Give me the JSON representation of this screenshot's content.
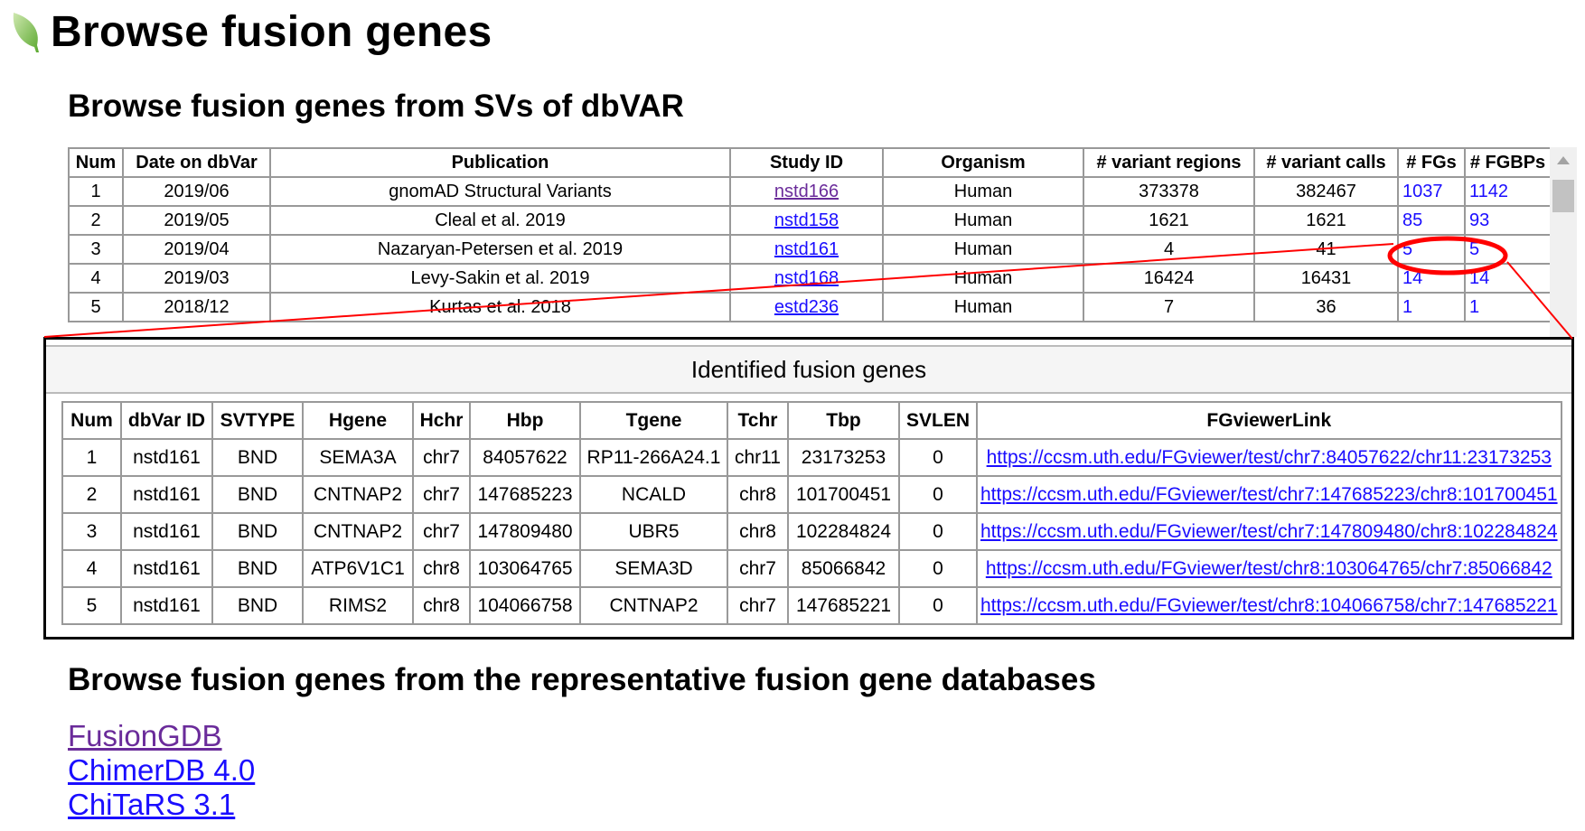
{
  "page": {
    "title": "Browse fusion genes",
    "icon": "leaf-icon",
    "accent_color": "#ff0000"
  },
  "dbvar_section": {
    "heading": "Browse fusion genes from SVs of dbVAR",
    "columns": [
      "Num",
      "Date on dbVar",
      "Publication",
      "Study ID",
      "Organism",
      "# variant regions",
      "# variant calls",
      "# FGs",
      "# FGBPs"
    ],
    "rows": [
      {
        "num": "1",
        "date": "2019/06",
        "publication": "gnomAD Structural Variants",
        "study_id": "nstd166",
        "organism": "Human",
        "variant_regions": "373378",
        "variant_calls": "382467",
        "fgs": "1037",
        "fgbps": "1142"
      },
      {
        "num": "2",
        "date": "2019/05",
        "publication": "Cleal et al. 2019",
        "study_id": "nstd158",
        "organism": "Human",
        "variant_regions": "1621",
        "variant_calls": "1621",
        "fgs": "85",
        "fgbps": "93"
      },
      {
        "num": "3",
        "date": "2019/04",
        "publication": "Nazaryan-Petersen et al. 2019",
        "study_id": "nstd161",
        "organism": "Human",
        "variant_regions": "4",
        "variant_calls": "41",
        "fgs": "5",
        "fgbps": "5"
      },
      {
        "num": "4",
        "date": "2019/03",
        "publication": "Levy-Sakin et al. 2019",
        "study_id": "nstd168",
        "organism": "Human",
        "variant_regions": "16424",
        "variant_calls": "16431",
        "fgs": "14",
        "fgbps": "14"
      },
      {
        "num": "5",
        "date": "2018/12",
        "publication": "Kurtas et al. 2018",
        "study_id": "estd236",
        "organism": "Human",
        "variant_regions": "7",
        "variant_calls": "36",
        "fgs": "1",
        "fgbps": "1"
      }
    ]
  },
  "identified_panel": {
    "caption": "Identified fusion genes",
    "columns": [
      "Num",
      "dbVar ID",
      "SVTYPE",
      "Hgene",
      "Hchr",
      "Hbp",
      "Tgene",
      "Tchr",
      "Tbp",
      "SVLEN",
      "FGviewerLink"
    ],
    "rows": [
      [
        "1",
        "nstd161",
        "BND",
        "SEMA3A",
        "chr7",
        "84057622",
        "RP11-266A24.1",
        "chr11",
        "23173253",
        "0",
        "https://ccsm.uth.edu/FGviewer/test/chr7:84057622/chr11:23173253"
      ],
      [
        "2",
        "nstd161",
        "BND",
        "CNTNAP2",
        "chr7",
        "147685223",
        "NCALD",
        "chr8",
        "101700451",
        "0",
        "https://ccsm.uth.edu/FGviewer/test/chr7:147685223/chr8:101700451"
      ],
      [
        "3",
        "nstd161",
        "BND",
        "CNTNAP2",
        "chr7",
        "147809480",
        "UBR5",
        "chr8",
        "102284824",
        "0",
        "https://ccsm.uth.edu/FGviewer/test/chr7:147809480/chr8:102284824"
      ],
      [
        "4",
        "nstd161",
        "BND",
        "ATP6V1C1",
        "chr8",
        "103064765",
        "SEMA3D",
        "chr7",
        "85066842",
        "0",
        "https://ccsm.uth.edu/FGviewer/test/chr8:103064765/chr7:85066842"
      ],
      [
        "5",
        "nstd161",
        "BND",
        "RIMS2",
        "chr8",
        "104066758",
        "CNTNAP2",
        "chr7",
        "147685221",
        "0",
        "https://ccsm.uth.edu/FGviewer/test/chr8:104066758/chr7:147685221"
      ]
    ]
  },
  "databases_section": {
    "heading": "Browse fusion genes from the representative fusion gene databases",
    "links": [
      {
        "label": "FusionGDB",
        "visited": true
      },
      {
        "label": "ChimerDB 4.0",
        "visited": false
      },
      {
        "label": "ChiTaRS 3.1",
        "visited": false
      }
    ]
  }
}
